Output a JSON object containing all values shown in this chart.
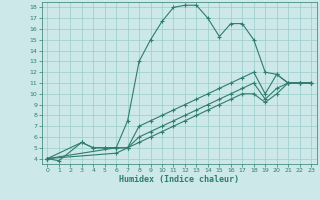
{
  "xlabel": "Humidex (Indice chaleur)",
  "bg_color": "#cce8e8",
  "grid_color": "#99cccc",
  "line_color": "#2e7d6e",
  "xlim": [
    -0.5,
    23.5
  ],
  "ylim": [
    3.5,
    18.5
  ],
  "xticks": [
    0,
    1,
    2,
    3,
    4,
    5,
    6,
    7,
    8,
    9,
    10,
    11,
    12,
    13,
    14,
    15,
    16,
    17,
    18,
    19,
    20,
    21,
    22,
    23
  ],
  "yticks": [
    4,
    5,
    6,
    7,
    8,
    9,
    10,
    11,
    12,
    13,
    14,
    15,
    16,
    17,
    18
  ],
  "line1_x": [
    0,
    1,
    3,
    4,
    5,
    6,
    7,
    8,
    9,
    10,
    11,
    12,
    13,
    14,
    15,
    16,
    17,
    18,
    19,
    20,
    21,
    22,
    23
  ],
  "line1_y": [
    4,
    3.8,
    5.5,
    5,
    5,
    5,
    7.5,
    13,
    15,
    16.7,
    18,
    18.2,
    18.2,
    17,
    15.3,
    16.5,
    16.5,
    15,
    12,
    11.8,
    11,
    11,
    11
  ],
  "line2_x": [
    0,
    3,
    4,
    5,
    6,
    7,
    8,
    9,
    10,
    11,
    12,
    13,
    14,
    15,
    16,
    17,
    18,
    19,
    20,
    21,
    22,
    23
  ],
  "line2_y": [
    4,
    5.5,
    5,
    5,
    5,
    5,
    7,
    7.5,
    8,
    8.5,
    9,
    9.5,
    10,
    10.5,
    11,
    11.5,
    12,
    10,
    11.8,
    11,
    11,
    11
  ],
  "line3_x": [
    0,
    6,
    7,
    8,
    9,
    10,
    11,
    12,
    13,
    14,
    15,
    16,
    17,
    18,
    19,
    20,
    21,
    22,
    23
  ],
  "line3_y": [
    4,
    5,
    5,
    6,
    6.5,
    7,
    7.5,
    8,
    8.5,
    9,
    9.5,
    10,
    10.5,
    11,
    9.5,
    10.5,
    11,
    11,
    11
  ],
  "line4_x": [
    0,
    6,
    7,
    8,
    9,
    10,
    11,
    12,
    13,
    14,
    15,
    16,
    17,
    18,
    19,
    20,
    21,
    22,
    23
  ],
  "line4_y": [
    4,
    4.5,
    5,
    5.5,
    6,
    6.5,
    7,
    7.5,
    8,
    8.5,
    9,
    9.5,
    10,
    10,
    9.2,
    10,
    11,
    11,
    11
  ]
}
